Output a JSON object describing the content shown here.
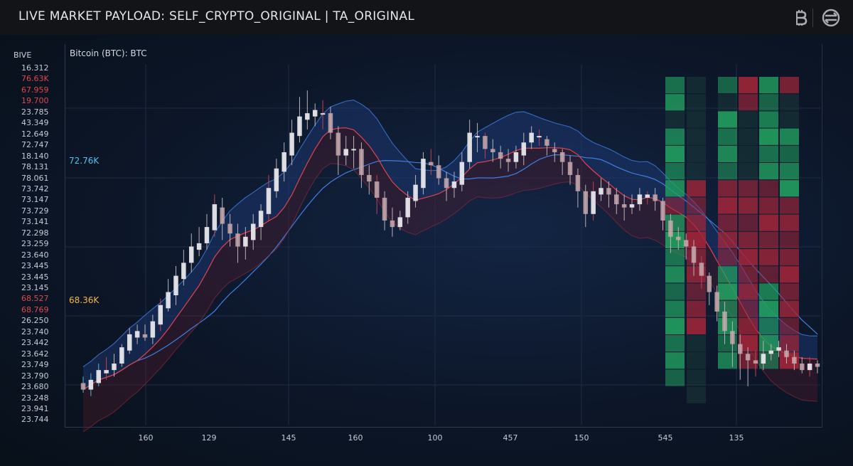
{
  "header": {
    "title": "LIVE MARKET PAYLOAD: SELF_CRYPTO_ORIGINAL | TA_ORIGINAL",
    "icons": [
      "bitcoin-icon",
      "exchange-icon"
    ]
  },
  "chart": {
    "symbol_label": "Bitcoin (BTC): BTC",
    "axis_title": "BIVE",
    "y_tick_labels": [
      {
        "text": "16.312",
        "color": "normal"
      },
      {
        "text": "76.63K",
        "color": "red"
      },
      {
        "text": "67.959",
        "color": "red"
      },
      {
        "text": "19.700",
        "color": "red"
      },
      {
        "text": "23.785",
        "color": "normal"
      },
      {
        "text": "43.349",
        "color": "normal"
      },
      {
        "text": "12.649",
        "color": "normal"
      },
      {
        "text": "72.747",
        "color": "normal"
      },
      {
        "text": "18.140",
        "color": "normal"
      },
      {
        "text": "78.131",
        "color": "normal"
      },
      {
        "text": "78.061",
        "color": "normal"
      },
      {
        "text": "73.742",
        "color": "normal"
      },
      {
        "text": "73.147",
        "color": "normal"
      },
      {
        "text": "73.729",
        "color": "normal"
      },
      {
        "text": "73.141",
        "color": "normal"
      },
      {
        "text": "72.298",
        "color": "normal"
      },
      {
        "text": "23.259",
        "color": "normal"
      },
      {
        "text": "23.640",
        "color": "normal"
      },
      {
        "text": "23.445",
        "color": "normal"
      },
      {
        "text": "23.445",
        "color": "normal"
      },
      {
        "text": "23.145",
        "color": "normal"
      },
      {
        "text": "68.527",
        "color": "red"
      },
      {
        "text": "68.769",
        "color": "red"
      },
      {
        "text": "26.250",
        "color": "normal"
      },
      {
        "text": "23.740",
        "color": "normal"
      },
      {
        "text": "23.442",
        "color": "normal"
      },
      {
        "text": "23.642",
        "color": "normal"
      },
      {
        "text": "23.749",
        "color": "normal"
      },
      {
        "text": "23.790",
        "color": "normal"
      },
      {
        "text": "23.680",
        "color": "normal"
      },
      {
        "text": "23.248",
        "color": "normal"
      },
      {
        "text": "23.941",
        "color": "normal"
      },
      {
        "text": "23.744",
        "color": "normal"
      }
    ],
    "x_tick_labels": [
      "160",
      "129",
      "145",
      "160",
      "100",
      "457",
      "150",
      "545",
      "135"
    ],
    "levels": {
      "high": {
        "label": "72.76K",
        "color": "#3fb7e8"
      },
      "low": {
        "label": "68.36K",
        "color": "#f0b43f"
      }
    },
    "colors": {
      "up_candle": "#e6e6ea",
      "down_candle": "#c9a9ad",
      "band_fill": "#1e3c7a",
      "band_fill_lower": "#5a1c2e",
      "blue_line": "#3f7fe0",
      "red_line": "#e0434e",
      "heat_green": "#22a361",
      "heat_red": "#a3263a"
    }
  },
  "chart_data": {
    "type": "line",
    "title": "Bitcoin (BTC): BTC",
    "ylabel": "BIVE",
    "x_tick_labels": [
      "160",
      "129",
      "145",
      "160",
      "100",
      "457",
      "150",
      "545",
      "135"
    ],
    "horizontal_levels": [
      {
        "label": "72.76K",
        "value": 72760
      },
      {
        "label": "68.36K",
        "value": 68360
      }
    ],
    "candles": [
      [
        0.08,
        0.06,
        0.1,
        0.05
      ],
      [
        0.06,
        0.09,
        0.11,
        0.04
      ],
      [
        0.08,
        0.12,
        0.14,
        0.07
      ],
      [
        0.11,
        0.12,
        0.16,
        0.09
      ],
      [
        0.12,
        0.14,
        0.17,
        0.1
      ],
      [
        0.14,
        0.19,
        0.2,
        0.13
      ],
      [
        0.18,
        0.23,
        0.25,
        0.17
      ],
      [
        0.22,
        0.24,
        0.26,
        0.2
      ],
      [
        0.23,
        0.22,
        0.26,
        0.21
      ],
      [
        0.22,
        0.27,
        0.29,
        0.2
      ],
      [
        0.26,
        0.32,
        0.34,
        0.24
      ],
      [
        0.31,
        0.36,
        0.4,
        0.3
      ],
      [
        0.35,
        0.41,
        0.44,
        0.32
      ],
      [
        0.4,
        0.45,
        0.49,
        0.38
      ],
      [
        0.45,
        0.5,
        0.54,
        0.42
      ],
      [
        0.49,
        0.51,
        0.56,
        0.47
      ],
      [
        0.51,
        0.56,
        0.6,
        0.49
      ],
      [
        0.55,
        0.63,
        0.66,
        0.53
      ],
      [
        0.62,
        0.57,
        0.65,
        0.52
      ],
      [
        0.57,
        0.54,
        0.6,
        0.5
      ],
      [
        0.54,
        0.5,
        0.57,
        0.45
      ],
      [
        0.5,
        0.53,
        0.56,
        0.46
      ],
      [
        0.52,
        0.57,
        0.6,
        0.49
      ],
      [
        0.56,
        0.61,
        0.63,
        0.52
      ],
      [
        0.6,
        0.68,
        0.72,
        0.58
      ],
      [
        0.67,
        0.74,
        0.77,
        0.65
      ],
      [
        0.73,
        0.79,
        0.82,
        0.7
      ],
      [
        0.78,
        0.85,
        0.89,
        0.75
      ],
      [
        0.84,
        0.9,
        0.96,
        0.82
      ],
      [
        0.89,
        0.91,
        0.98,
        0.86
      ],
      [
        0.9,
        0.92,
        0.94,
        0.87
      ],
      [
        0.91,
        0.91,
        0.95,
        0.86
      ],
      [
        0.91,
        0.85,
        0.93,
        0.83
      ],
      [
        0.85,
        0.78,
        0.87,
        0.72
      ],
      [
        0.78,
        0.8,
        0.84,
        0.75
      ],
      [
        0.8,
        0.8,
        0.84,
        0.74
      ],
      [
        0.8,
        0.72,
        0.82,
        0.68
      ],
      [
        0.72,
        0.7,
        0.75,
        0.66
      ],
      [
        0.7,
        0.65,
        0.72,
        0.6
      ],
      [
        0.65,
        0.58,
        0.67,
        0.55
      ],
      [
        0.58,
        0.56,
        0.62,
        0.53
      ],
      [
        0.56,
        0.59,
        0.61,
        0.55
      ],
      [
        0.59,
        0.65,
        0.67,
        0.57
      ],
      [
        0.64,
        0.69,
        0.72,
        0.62
      ],
      [
        0.68,
        0.77,
        0.79,
        0.66
      ],
      [
        0.76,
        0.75,
        0.8,
        0.72
      ],
      [
        0.75,
        0.71,
        0.78,
        0.69
      ],
      [
        0.71,
        0.68,
        0.73,
        0.64
      ],
      [
        0.68,
        0.7,
        0.73,
        0.65
      ],
      [
        0.69,
        0.76,
        0.79,
        0.67
      ],
      [
        0.76,
        0.85,
        0.89,
        0.74
      ],
      [
        0.84,
        0.84,
        0.88,
        0.79
      ],
      [
        0.84,
        0.8,
        0.85,
        0.77
      ],
      [
        0.8,
        0.79,
        0.83,
        0.76
      ],
      [
        0.79,
        0.77,
        0.81,
        0.74
      ],
      [
        0.77,
        0.76,
        0.8,
        0.73
      ],
      [
        0.76,
        0.79,
        0.81,
        0.74
      ],
      [
        0.78,
        0.82,
        0.85,
        0.75
      ],
      [
        0.82,
        0.85,
        0.87,
        0.8
      ],
      [
        0.84,
        0.84,
        0.86,
        0.81
      ],
      [
        0.83,
        0.81,
        0.84,
        0.78
      ],
      [
        0.8,
        0.79,
        0.82,
        0.76
      ],
      [
        0.79,
        0.76,
        0.8,
        0.72
      ],
      [
        0.76,
        0.72,
        0.78,
        0.69
      ],
      [
        0.72,
        0.67,
        0.74,
        0.62
      ],
      [
        0.67,
        0.6,
        0.69,
        0.56
      ],
      [
        0.6,
        0.67,
        0.7,
        0.58
      ],
      [
        0.66,
        0.68,
        0.71,
        0.64
      ],
      [
        0.68,
        0.66,
        0.7,
        0.62
      ],
      [
        0.66,
        0.63,
        0.68,
        0.6
      ],
      [
        0.63,
        0.62,
        0.66,
        0.58
      ],
      [
        0.62,
        0.63,
        0.66,
        0.6
      ],
      [
        0.63,
        0.66,
        0.68,
        0.61
      ],
      [
        0.65,
        0.66,
        0.67,
        0.63
      ],
      [
        0.66,
        0.64,
        0.68,
        0.61
      ],
      [
        0.64,
        0.58,
        0.65,
        0.55
      ],
      [
        0.58,
        0.53,
        0.6,
        0.48
      ],
      [
        0.53,
        0.52,
        0.56,
        0.49
      ],
      [
        0.52,
        0.5,
        0.54,
        0.46
      ],
      [
        0.5,
        0.45,
        0.52,
        0.41
      ],
      [
        0.45,
        0.41,
        0.47,
        0.37
      ],
      [
        0.41,
        0.36,
        0.42,
        0.32
      ],
      [
        0.36,
        0.3,
        0.38,
        0.27
      ],
      [
        0.3,
        0.24,
        0.33,
        0.2
      ],
      [
        0.24,
        0.2,
        0.27,
        0.13
      ],
      [
        0.2,
        0.17,
        0.23,
        0.09
      ],
      [
        0.17,
        0.15,
        0.19,
        0.07
      ],
      [
        0.15,
        0.14,
        0.18,
        0.1
      ],
      [
        0.14,
        0.17,
        0.21,
        0.12
      ],
      [
        0.17,
        0.18,
        0.2,
        0.15
      ],
      [
        0.18,
        0.19,
        0.21,
        0.16
      ],
      [
        0.18,
        0.16,
        0.2,
        0.14
      ],
      [
        0.16,
        0.14,
        0.18,
        0.12
      ],
      [
        0.14,
        0.12,
        0.16,
        0.11
      ],
      [
        0.12,
        0.14,
        0.16,
        0.1
      ],
      [
        0.14,
        0.13,
        0.15,
        0.11
      ]
    ]
  }
}
